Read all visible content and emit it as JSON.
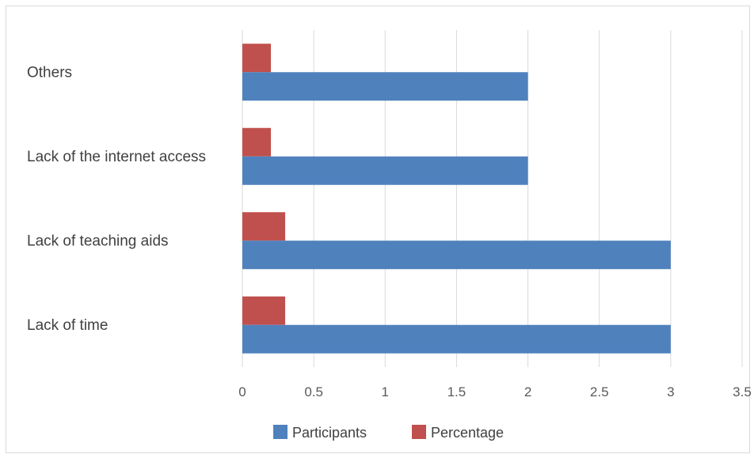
{
  "chart_data": {
    "type": "bar",
    "orientation": "horizontal",
    "categories": [
      "Others",
      "Lack of the internet access",
      "Lack of teaching aids",
      "Lack of time"
    ],
    "series": [
      {
        "name": "Participants",
        "values": [
          2,
          2,
          3,
          3
        ],
        "color": "#4f81bd"
      },
      {
        "name": "Percentage",
        "values": [
          0.2,
          0.2,
          0.3,
          0.3
        ],
        "color": "#c0504d"
      }
    ],
    "xlim": [
      0,
      3.5
    ],
    "x_ticks": [
      "0",
      "0.5",
      "1",
      "1.5",
      "2",
      "2.5",
      "3",
      "3.5"
    ],
    "grid": true,
    "legend_position": "bottom"
  }
}
